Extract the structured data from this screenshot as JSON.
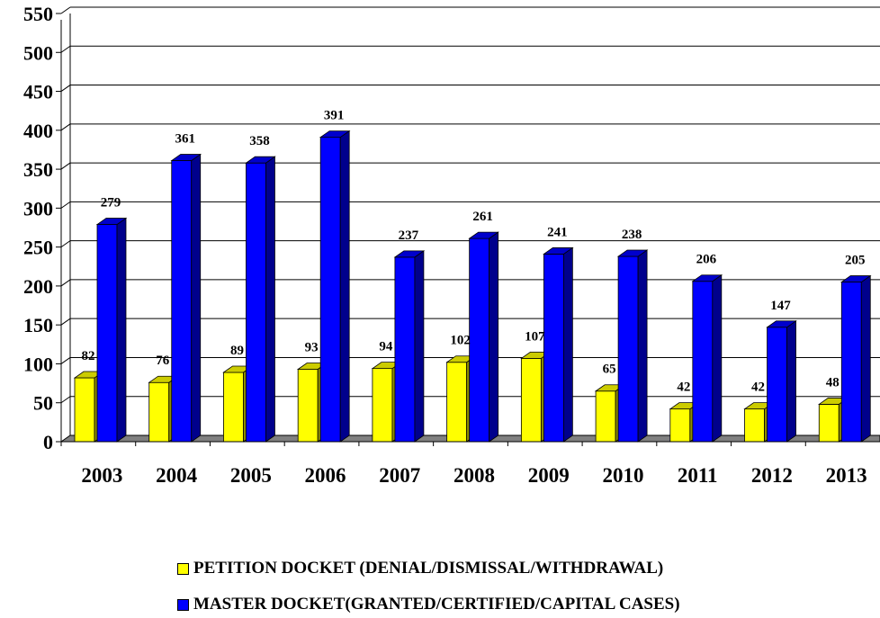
{
  "chart_data": {
    "type": "bar",
    "categories": [
      "2003",
      "2004",
      "2005",
      "2006",
      "2007",
      "2008",
      "2009",
      "2010",
      "2011",
      "2012",
      "2013"
    ],
    "series": [
      {
        "name": "PETITION DOCKET (DENIAL/DISMISSAL/WITHDRAWAL)",
        "values": [
          82,
          76,
          89,
          93,
          94,
          102,
          107,
          65,
          42,
          42,
          48
        ],
        "color": "#ffff00"
      },
      {
        "name": "MASTER DOCKET(GRANTED/CERTIFIED/CAPITAL CASES)",
        "values": [
          279,
          361,
          358,
          391,
          237,
          261,
          241,
          238,
          206,
          147,
          205
        ],
        "color": "#0000ff"
      }
    ],
    "title": "",
    "xlabel": "",
    "ylabel": "",
    "ylim": [
      0,
      550
    ],
    "yticks": [
      "0",
      "50",
      "100",
      "150",
      "200",
      "250",
      "300",
      "350",
      "400",
      "450",
      "500",
      "550"
    ],
    "grid": true,
    "bar_style": "3d",
    "legend_position": "bottom"
  }
}
